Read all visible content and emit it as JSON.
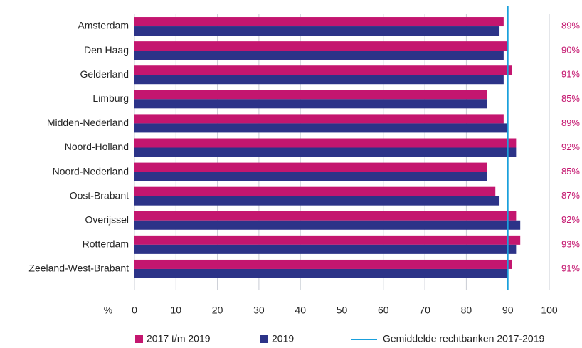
{
  "chart_data": {
    "type": "bar",
    "orientation": "horizontal",
    "x_label": "%",
    "categories": [
      "Amsterdam",
      "Den Haag",
      "Gelderland",
      "Limburg",
      "Midden-Nederland",
      "Noord-Holland",
      "Noord-Nederland",
      "Oost-Brabant",
      "Overijssel",
      "Rotterdam",
      "Zeeland-West-Brabant"
    ],
    "series": [
      {
        "name": "2017 t/m 2019",
        "color": "#c4166f",
        "values": [
          89,
          90,
          91,
          85,
          89,
          92,
          85,
          87,
          92,
          93,
          91
        ],
        "value_labels": [
          "89%",
          "90%",
          "91%",
          "85%",
          "89%",
          "92%",
          "85%",
          "87%",
          "92%",
          "93%",
          "91%"
        ]
      },
      {
        "name": "2019",
        "color": "#2c3388",
        "values": [
          88,
          89,
          89,
          85,
          90,
          92,
          85,
          88,
          93,
          92,
          90
        ]
      }
    ],
    "reference_line": {
      "name": "Gemiddelde rechtbanken 2017-2019",
      "value": 90,
      "color": "#1aa0dc"
    },
    "xlim": [
      0,
      100
    ],
    "xticks": [
      0,
      10,
      20,
      30,
      40,
      50,
      60,
      70,
      80,
      90,
      100
    ],
    "grid": true
  }
}
